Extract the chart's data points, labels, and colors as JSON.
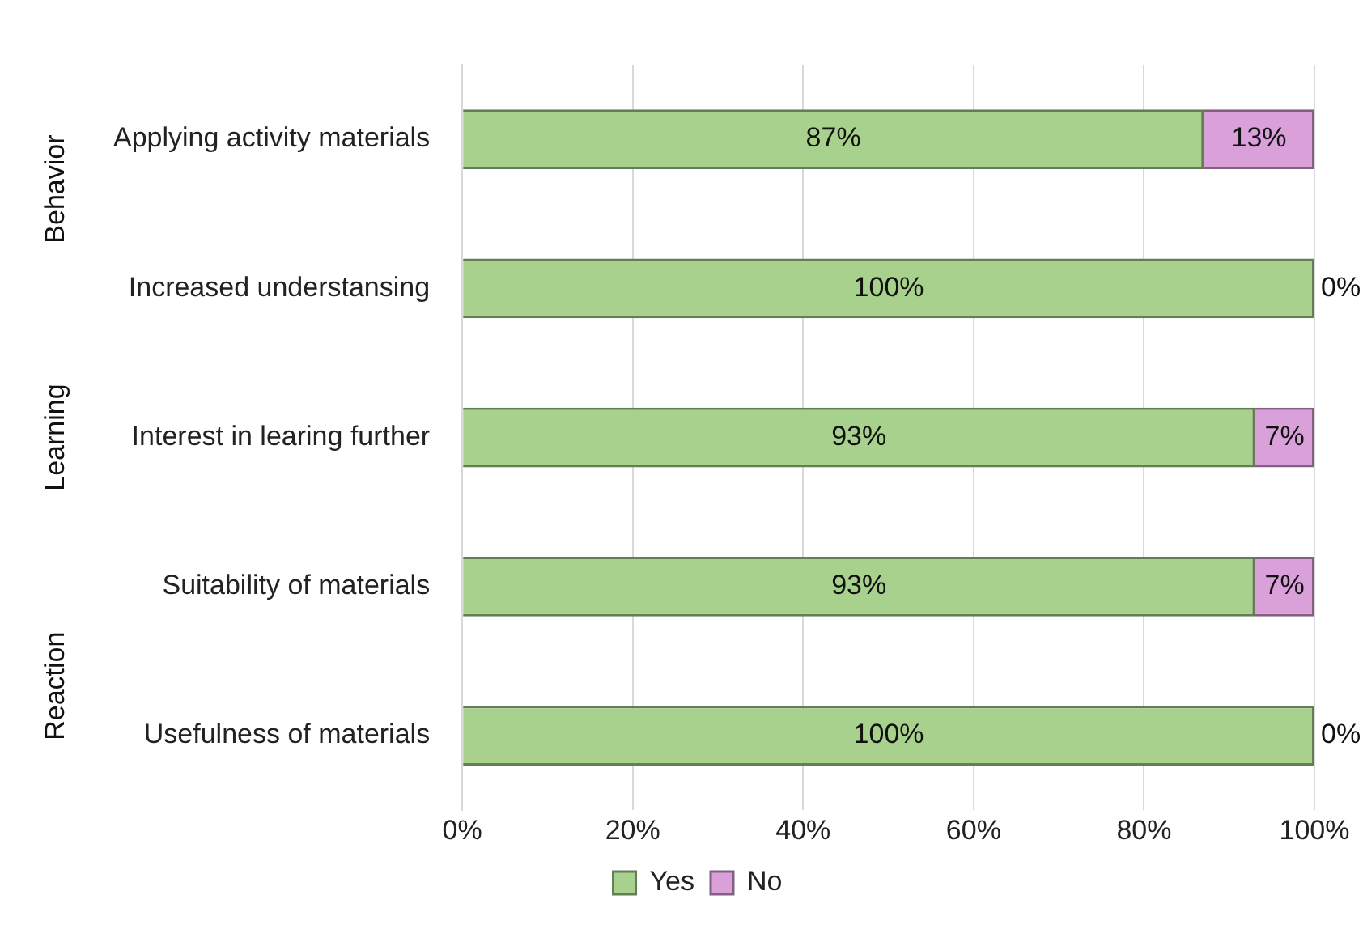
{
  "chart_data": {
    "type": "bar",
    "orientation": "horizontal",
    "stacked": true,
    "categories": [
      "Applying activity materials",
      "Increased understansing",
      "Interest in learing further",
      "Suitability of materials",
      "Usefulness of materials"
    ],
    "series": [
      {
        "name": "Yes",
        "color": "#a9d18e",
        "values": [
          87,
          100,
          93,
          93,
          100
        ],
        "value_labels": [
          "87%",
          "100%",
          "93%",
          "93%",
          "100%"
        ]
      },
      {
        "name": "No",
        "color": "#d9a0d9",
        "values": [
          13,
          0,
          7,
          7,
          0
        ],
        "value_labels": [
          "13%",
          "0%",
          "7%",
          "7%",
          "0%"
        ]
      }
    ],
    "xlim": [
      0,
      100
    ],
    "xticks": [
      {
        "value": 0,
        "label": "0%"
      },
      {
        "value": 20,
        "label": "20%"
      },
      {
        "value": 40,
        "label": "40%"
      },
      {
        "value": 60,
        "label": "60%"
      },
      {
        "value": 80,
        "label": "80%"
      },
      {
        "value": 100,
        "label": "100%"
      }
    ],
    "grid": "x",
    "legend": "bottom",
    "annotations": [
      "Behavior",
      "Learning",
      "Reaction"
    ]
  }
}
